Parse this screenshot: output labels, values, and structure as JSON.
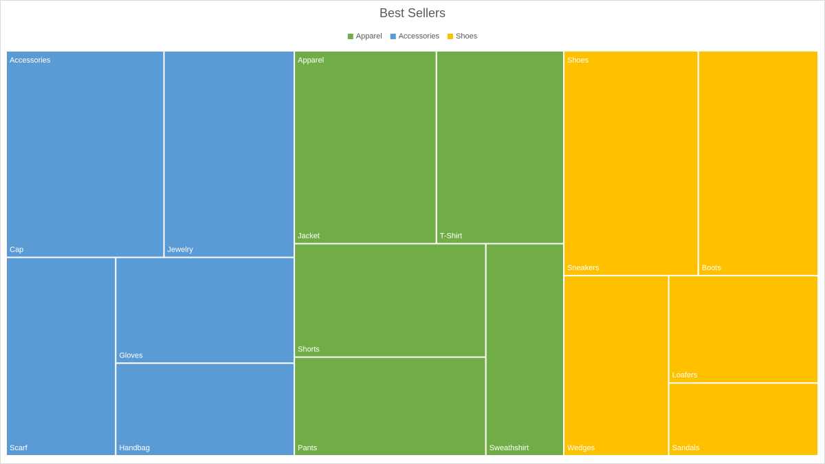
{
  "chart_data": {
    "type": "treemap",
    "title": "Best Sellers",
    "series": [
      {
        "name": "Apparel",
        "color": "#70ad47",
        "categories": [
          "Jacket",
          "T-Shirt",
          "Shorts",
          "Pants",
          "Sweathshirt"
        ],
        "values": [
          58,
          52,
          46,
          40,
          35
        ]
      },
      {
        "name": "Accessories",
        "color": "#5b9bd5",
        "categories": [
          "Cap",
          "Jewelry",
          "Scarf",
          "Gloves",
          "Handbag"
        ],
        "values": [
          69,
          57,
          46,
          40,
          35
        ]
      },
      {
        "name": "Shoes",
        "color": "#ffc000",
        "categories": [
          "Sneakers",
          "Boots",
          "Wedges",
          "Loafers",
          "Sandals"
        ],
        "values": [
          64,
          57,
          40,
          34,
          23
        ]
      }
    ]
  }
}
